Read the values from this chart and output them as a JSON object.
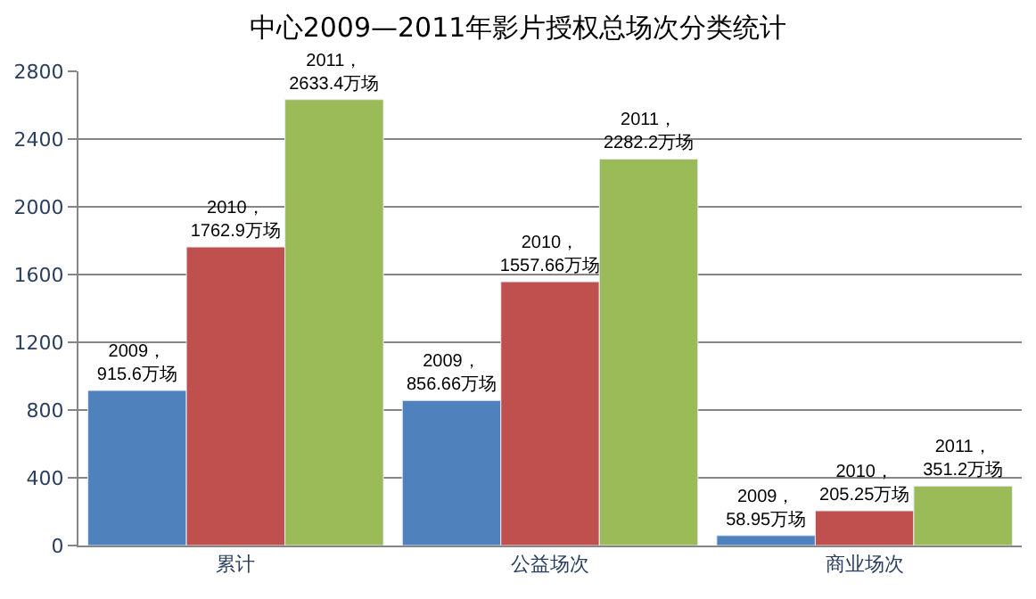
{
  "chart_data": {
    "type": "bar",
    "title": "中心2009—2011年影片授权总场次分类统计",
    "categories": [
      "累计",
      "公益场次",
      "商业场次"
    ],
    "series": [
      {
        "color": "#4f81bd",
        "values": [
          915.6,
          856.66,
          58.95
        ],
        "value_labels": [
          "2009，\n915.6万场",
          "2009，\n856.66万场",
          "2009，\n58.95万场"
        ]
      },
      {
        "color": "#c0504d",
        "values": [
          1762.9,
          1557.66,
          205.25
        ],
        "value_labels": [
          "2010，\n1762.9万场",
          "2010，\n1557.66万场",
          "2010，\n205.25万场"
        ]
      },
      {
        "color": "#9bbb59",
        "values": [
          2633.4,
          2282.2,
          351.2
        ],
        "value_labels": [
          "2011，\n2633.4万场",
          "2011，\n2282.2万场",
          "2011，\n351.2万场"
        ]
      }
    ],
    "ylim": [
      0,
      2800
    ],
    "yticks": [
      0,
      400,
      800,
      1200,
      1600,
      2000,
      2400,
      2800
    ],
    "grid": "y",
    "legend": false
  }
}
